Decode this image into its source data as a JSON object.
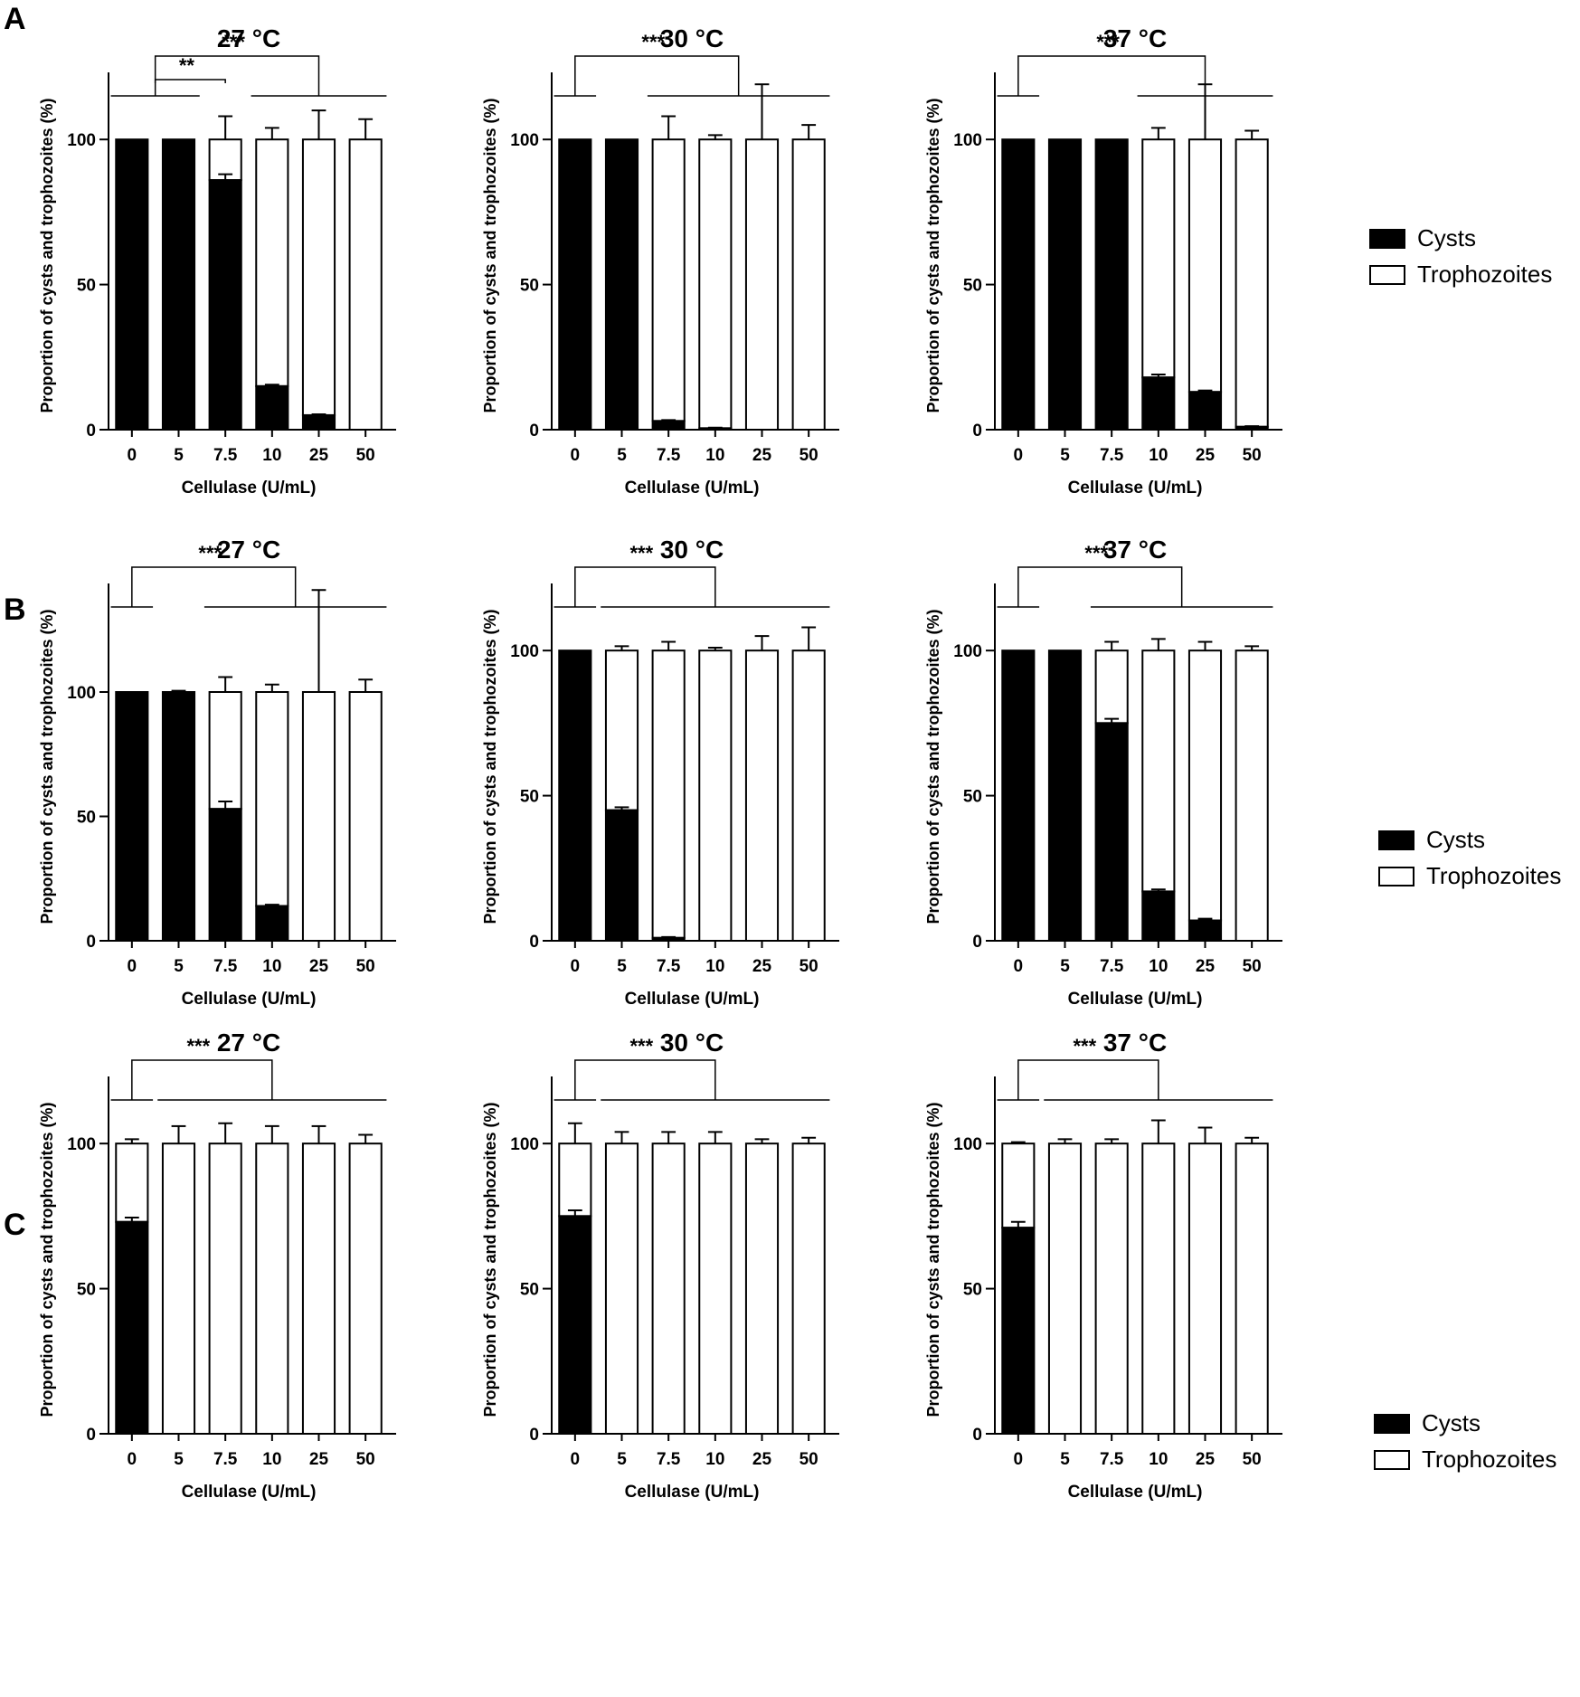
{
  "figure": {
    "colors": {
      "cysts": "#000000",
      "trophozoites": "#ffffff",
      "stroke": "#000000"
    },
    "legend": {
      "cysts": "Cysts",
      "trophozoites": "Trophozoites"
    }
  },
  "chart_data": [
    {
      "panel": "A",
      "type": "bar",
      "stacked": true,
      "title": "27 °C",
      "xlabel": "Cellulase (U/mL)",
      "ylabel": "Proportion of cysts and trophozoites (%)",
      "ylim": [
        0,
        120
      ],
      "yticks": [
        0,
        50,
        100
      ],
      "categories": [
        "0",
        "5",
        "7.5",
        "10",
        "25",
        "50"
      ],
      "series": [
        {
          "name": "Cysts",
          "values": [
            100,
            100,
            86,
            15,
            5,
            0
          ],
          "error": [
            0,
            0,
            2,
            0.5,
            0.3,
            0
          ]
        },
        {
          "name": "Trophozoites",
          "values": [
            0,
            0,
            14,
            85,
            95,
            100
          ],
          "error": [
            0,
            0,
            8,
            4,
            10,
            7
          ]
        }
      ],
      "significance": [
        {
          "label": "***",
          "from": [
            0,
            1
          ],
          "to": [
            3,
            5
          ]
        },
        {
          "label": "**",
          "from": [
            0,
            1
          ],
          "to": [
            2,
            2
          ]
        }
      ]
    },
    {
      "panel": "A",
      "type": "bar",
      "stacked": true,
      "title": "30 °C",
      "xlabel": "Cellulase (U/mL)",
      "ylabel": "Proportion of cysts and trophozoites (%)",
      "ylim": [
        0,
        120
      ],
      "yticks": [
        0,
        50,
        100
      ],
      "categories": [
        "0",
        "5",
        "7.5",
        "10",
        "25",
        "50"
      ],
      "series": [
        {
          "name": "Cysts",
          "values": [
            100,
            100,
            3,
            0.5,
            0,
            0
          ],
          "error": [
            0,
            0,
            0.3,
            0.2,
            0,
            0
          ]
        },
        {
          "name": "Trophozoites",
          "values": [
            0,
            0,
            97,
            99.5,
            100,
            100
          ],
          "error": [
            0,
            0,
            8,
            1.5,
            19,
            5
          ]
        }
      ],
      "significance": [
        {
          "label": "***",
          "from": [
            0,
            0
          ],
          "to": [
            2,
            5
          ]
        }
      ]
    },
    {
      "panel": "A",
      "type": "bar",
      "stacked": true,
      "title": "37 °C",
      "xlabel": "Cellulase (U/mL)",
      "ylabel": "Proportion of cysts and trophozoites (%)",
      "ylim": [
        0,
        120
      ],
      "yticks": [
        0,
        50,
        100
      ],
      "categories": [
        "0",
        "5",
        "7.5",
        "10",
        "25",
        "50"
      ],
      "series": [
        {
          "name": "Cysts",
          "values": [
            100,
            100,
            100,
            18,
            13,
            1
          ],
          "error": [
            0,
            0,
            0,
            1,
            0.5,
            0.2
          ]
        },
        {
          "name": "Trophozoites",
          "values": [
            0,
            0,
            0,
            82,
            87,
            99
          ],
          "error": [
            0,
            0,
            0,
            4,
            19,
            3
          ]
        }
      ],
      "significance": [
        {
          "label": "***",
          "from": [
            0,
            0
          ],
          "to": [
            3,
            5
          ]
        }
      ]
    },
    {
      "panel": "B",
      "type": "bar",
      "stacked": true,
      "title": "27 °C",
      "xlabel": "Cellulase (U/mL)",
      "ylabel": "Proportion of cysts and trophozoites (%)",
      "ylim": [
        0,
        140
      ],
      "yticks": [
        0,
        50,
        100
      ],
      "categories": [
        "0",
        "5",
        "7.5",
        "10",
        "25",
        "50"
      ],
      "series": [
        {
          "name": "Cysts",
          "values": [
            100,
            100,
            53,
            14,
            0,
            0
          ],
          "error": [
            0,
            0.5,
            3,
            0.5,
            0,
            0
          ]
        },
        {
          "name": "Trophozoites",
          "values": [
            0,
            0,
            47,
            86,
            100,
            100
          ],
          "error": [
            0,
            0,
            6,
            3,
            41,
            5
          ]
        }
      ],
      "significance": [
        {
          "label": "***",
          "from": [
            0,
            0
          ],
          "to": [
            2,
            5
          ]
        }
      ]
    },
    {
      "panel": "B",
      "type": "bar",
      "stacked": true,
      "title": "30 °C",
      "xlabel": "Cellulase (U/mL)",
      "ylabel": "Proportion of cysts and trophozoites (%)",
      "ylim": [
        0,
        120
      ],
      "yticks": [
        0,
        50,
        100
      ],
      "categories": [
        "0",
        "5",
        "7.5",
        "10",
        "25",
        "50"
      ],
      "series": [
        {
          "name": "Cysts",
          "values": [
            100,
            45,
            1,
            0,
            0,
            0
          ],
          "error": [
            0,
            1,
            0.3,
            0,
            0,
            0
          ]
        },
        {
          "name": "Trophozoites",
          "values": [
            0,
            55,
            99,
            100,
            100,
            100
          ],
          "error": [
            0,
            1.5,
            3,
            1,
            5,
            8
          ]
        }
      ],
      "significance": [
        {
          "label": "***",
          "from": [
            0,
            0
          ],
          "to": [
            1,
            5
          ]
        }
      ]
    },
    {
      "panel": "B",
      "type": "bar",
      "stacked": true,
      "title": "37 °C",
      "xlabel": "Cellulase (U/mL)",
      "ylabel": "Proportion of cysts and trophozoites (%)",
      "ylim": [
        0,
        120
      ],
      "yticks": [
        0,
        50,
        100
      ],
      "categories": [
        "0",
        "5",
        "7.5",
        "10",
        "25",
        "50"
      ],
      "series": [
        {
          "name": "Cysts",
          "values": [
            100,
            100,
            75,
            17,
            7,
            0
          ],
          "error": [
            0,
            0,
            1.5,
            0.7,
            0.6,
            0
          ]
        },
        {
          "name": "Trophozoites",
          "values": [
            0,
            0,
            25,
            83,
            93,
            100
          ],
          "error": [
            0,
            0,
            3,
            4,
            3,
            1.5
          ]
        }
      ],
      "significance": [
        {
          "label": "***",
          "from": [
            0,
            0
          ],
          "to": [
            2,
            5
          ]
        }
      ]
    },
    {
      "panel": "C",
      "type": "bar",
      "stacked": true,
      "title": "27 °C",
      "xlabel": "Cellulase (U/mL)",
      "ylabel": "Proportion of cysts and trophozoites (%)",
      "ylim": [
        0,
        120
      ],
      "yticks": [
        0,
        50,
        100
      ],
      "categories": [
        "0",
        "5",
        "7.5",
        "10",
        "25",
        "50"
      ],
      "series": [
        {
          "name": "Cysts",
          "values": [
            73,
            0,
            0,
            0,
            0,
            0
          ],
          "error": [
            1.5,
            0,
            0,
            0,
            0,
            0
          ]
        },
        {
          "name": "Trophozoites",
          "values": [
            27,
            100,
            100,
            100,
            100,
            100
          ],
          "error": [
            1.5,
            6,
            7,
            6,
            6,
            3
          ]
        }
      ],
      "significance": [
        {
          "label": "***",
          "from": [
            0,
            0
          ],
          "to": [
            1,
            5
          ]
        }
      ]
    },
    {
      "panel": "C",
      "type": "bar",
      "stacked": true,
      "title": "30 °C",
      "xlabel": "Cellulase (U/mL)",
      "ylabel": "Proportion of cysts and trophozoites (%)",
      "ylim": [
        0,
        120
      ],
      "yticks": [
        0,
        50,
        100
      ],
      "categories": [
        "0",
        "5",
        "7.5",
        "10",
        "25",
        "50"
      ],
      "series": [
        {
          "name": "Cysts",
          "values": [
            75,
            0,
            0,
            0,
            0,
            0
          ],
          "error": [
            2,
            0,
            0,
            0,
            0,
            0
          ]
        },
        {
          "name": "Trophozoites",
          "values": [
            25,
            100,
            100,
            100,
            100,
            100
          ],
          "error": [
            7,
            4,
            4,
            4,
            1.5,
            2
          ]
        }
      ],
      "significance": [
        {
          "label": "***",
          "from": [
            0,
            0
          ],
          "to": [
            1,
            5
          ]
        }
      ]
    },
    {
      "panel": "C",
      "type": "bar",
      "stacked": true,
      "title": "37 °C",
      "xlabel": "Cellulase (U/mL)",
      "ylabel": "Proportion of cysts and trophozoites (%)",
      "ylim": [
        0,
        120
      ],
      "yticks": [
        0,
        50,
        100
      ],
      "categories": [
        "0",
        "5",
        "7.5",
        "10",
        "25",
        "50"
      ],
      "series": [
        {
          "name": "Cysts",
          "values": [
            71,
            0,
            0,
            0,
            0,
            0
          ],
          "error": [
            2,
            0,
            0,
            0,
            0,
            0
          ]
        },
        {
          "name": "Trophozoites",
          "values": [
            29,
            100,
            100,
            100,
            100,
            100
          ],
          "error": [
            0.5,
            1.5,
            1.5,
            8,
            5.5,
            2
          ]
        }
      ],
      "significance": [
        {
          "label": "***",
          "from": [
            0,
            0
          ],
          "to": [
            1,
            5
          ]
        }
      ]
    }
  ]
}
